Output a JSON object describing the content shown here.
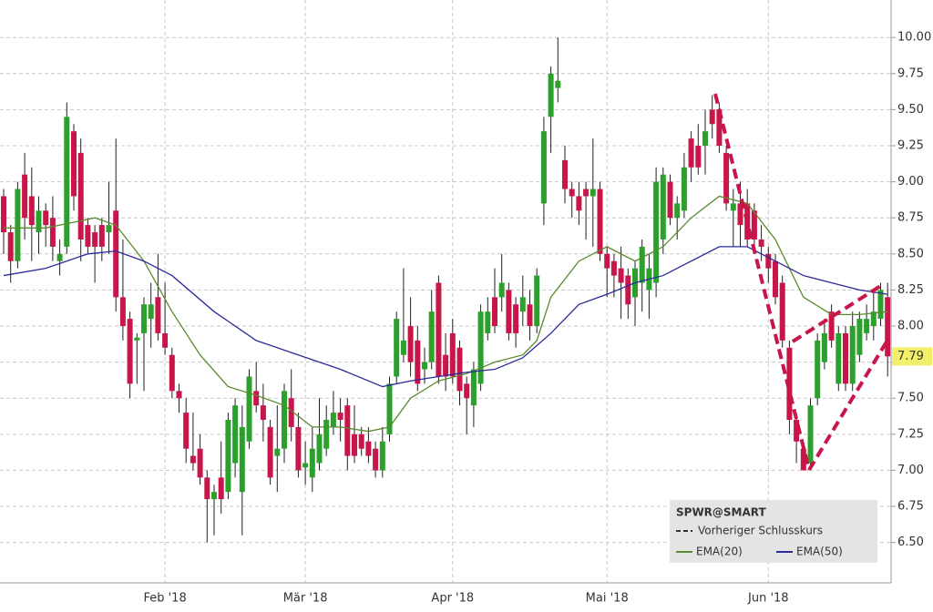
{
  "chart_data": {
    "type": "candlestick",
    "legend_title": "SPWR@SMART",
    "previous_close_label": "Vorheriger Schlusskurs",
    "last_price": 7.79,
    "up_color": "#2ca02c",
    "down_color": "#c8154a",
    "grid": true,
    "ylim": [
      6.22,
      10.26
    ],
    "yticks": [
      {
        "value": 6.5,
        "label": "6.50"
      },
      6.75,
      {
        "value": 7,
        "label": "7.00"
      },
      7.25,
      {
        "value": 7.5,
        "label": "7.50"
      },
      7.75,
      {
        "value": 8,
        "label": "8.00"
      },
      8.25,
      {
        "value": 8.5,
        "label": "8.50"
      },
      8.75,
      {
        "value": 9,
        "label": "9.00"
      },
      9.25,
      {
        "value": 9.5,
        "label": "9.50"
      },
      9.75,
      {
        "value": 10,
        "label": "10.00"
      }
    ],
    "categories": [
      null,
      null,
      null,
      null,
      null,
      null,
      null,
      null,
      null,
      null,
      null,
      null,
      null,
      null,
      null,
      null,
      null,
      null,
      null,
      null,
      null,
      null,
      null,
      "Feb '18",
      null,
      null,
      null,
      null,
      null,
      null,
      null,
      null,
      null,
      null,
      null,
      null,
      null,
      null,
      null,
      null,
      null,
      null,
      null,
      "Mär '18",
      null,
      null,
      null,
      null,
      null,
      null,
      null,
      null,
      null,
      null,
      null,
      null,
      null,
      null,
      null,
      null,
      null,
      null,
      null,
      null,
      "Apr '18",
      null,
      null,
      null,
      null,
      null,
      null,
      null,
      null,
      null,
      null,
      null,
      null,
      null,
      null,
      null,
      null,
      null,
      null,
      null,
      null,
      null,
      "Mai '18",
      null,
      null,
      null,
      null,
      null,
      null,
      null,
      null,
      null,
      null,
      null,
      null,
      null,
      null,
      null,
      null,
      null,
      null,
      null,
      null,
      null,
      null,
      "Jun '18",
      null,
      null,
      null,
      null,
      null,
      null,
      null,
      null,
      null,
      null,
      null,
      null,
      null,
      null,
      null,
      null,
      null
    ],
    "open": [
      8.9,
      8.65,
      8.45,
      9.05,
      8.9,
      8.65,
      8.8,
      8.75,
      8.45,
      8.55,
      9.35,
      9.2,
      8.7,
      8.65,
      8.7,
      8.65,
      8.8,
      8.2,
      8.05,
      7.9,
      7.95,
      8.05,
      8.2,
      7.95,
      7.8,
      7.55,
      7.4,
      7.1,
      7.15,
      6.95,
      6.8,
      6.95,
      6.85,
      7.05,
      6.85,
      7.2,
      7.55,
      7.45,
      7.3,
      7.1,
      7.15,
      7.5,
      7.3,
      7.02,
      6.95,
      7.05,
      7.15,
      7.3,
      7.4,
      7.45,
      7.25,
      7.25,
      7.2,
      7.15,
      7.0,
      7.25,
      7.65,
      7.8,
      8.0,
      7.9,
      7.7,
      7.75,
      8.3,
      7.8,
      7.95,
      7.85,
      7.6,
      7.45,
      7.6,
      7.95,
      8.2,
      8.2,
      8.25,
      8.15,
      8.1,
      8.15,
      8.0,
      8.85,
      9.45,
      9.65,
      9.15,
      8.95,
      8.9,
      8.95,
      8.9,
      8.95,
      8.5,
      8.45,
      8.4,
      8.35,
      8.2,
      8.3,
      8.25,
      8.3,
      8.6,
      9.0,
      8.75,
      8.8,
      9.3,
      9.25,
      9.25,
      9.5,
      9.5,
      9.2,
      8.8,
      8.85,
      8.85,
      8.8,
      8.6,
      8.5,
      8.45,
      8.3,
      7.85,
      7.35,
      7.15,
      7.05,
      7.5,
      7.75,
      8.1,
      7.6,
      7.95,
      7.6,
      7.8,
      7.95,
      8.0,
      8.05,
      8.2
    ],
    "high": [
      8.95,
      8.7,
      9.0,
      9.2,
      9.1,
      8.9,
      8.85,
      8.9,
      8.6,
      9.55,
      9.4,
      9.3,
      8.75,
      8.7,
      8.75,
      9.0,
      9.3,
      8.6,
      8.1,
      7.95,
      8.2,
      8.3,
      8.5,
      8.3,
      7.85,
      7.6,
      7.5,
      7.4,
      7.25,
      7.0,
      6.9,
      7.2,
      7.4,
      7.5,
      7.45,
      7.7,
      7.75,
      7.6,
      7.35,
      7.45,
      7.6,
      7.7,
      7.4,
      7.2,
      7.3,
      7.5,
      7.45,
      7.55,
      7.5,
      7.5,
      7.45,
      7.3,
      7.3,
      7.2,
      7.3,
      7.65,
      8.1,
      8.4,
      8.2,
      8.0,
      7.85,
      8.25,
      8.35,
      7.95,
      8.05,
      7.9,
      7.65,
      7.75,
      8.15,
      8.2,
      8.4,
      8.5,
      8.3,
      8.2,
      8.35,
      8.25,
      8.4,
      9.45,
      9.8,
      10.0,
      9.25,
      9.0,
      9.0,
      9.0,
      9.3,
      9.0,
      8.55,
      8.5,
      8.55,
      8.4,
      8.45,
      8.6,
      8.5,
      9.1,
      9.1,
      9.05,
      8.9,
      9.2,
      9.35,
      9.4,
      9.5,
      9.6,
      9.55,
      9.25,
      8.95,
      9.0,
      8.95,
      8.85,
      8.7,
      8.55,
      8.5,
      8.35,
      7.9,
      7.4,
      7.2,
      7.5,
      7.95,
      8.05,
      8.15,
      8.0,
      8.0,
      8.1,
      8.1,
      8.15,
      8.25,
      8.3,
      8.3
    ],
    "low": [
      8.5,
      8.3,
      8.4,
      8.6,
      8.45,
      8.5,
      8.55,
      8.45,
      8.35,
      8.5,
      8.8,
      8.45,
      8.5,
      8.3,
      8.45,
      8.5,
      8.1,
      7.9,
      7.5,
      7.6,
      7.55,
      7.85,
      7.9,
      7.8,
      7.5,
      7.4,
      7.05,
      7.0,
      6.9,
      6.5,
      6.55,
      6.7,
      6.8,
      6.95,
      6.55,
      7.15,
      7.4,
      7.2,
      6.9,
      6.85,
      7.05,
      7.2,
      6.95,
      6.9,
      6.85,
      7.0,
      7.1,
      7.25,
      7.2,
      7.0,
      7.05,
      7.1,
      7.05,
      6.95,
      6.95,
      7.2,
      7.6,
      7.75,
      7.65,
      7.55,
      7.6,
      7.7,
      7.6,
      7.55,
      7.6,
      7.45,
      7.25,
      7.3,
      7.55,
      7.9,
      7.95,
      8.1,
      7.9,
      7.85,
      8.0,
      7.9,
      7.95,
      8.7,
      9.2,
      9.55,
      8.85,
      8.75,
      8.7,
      8.6,
      8.55,
      8.45,
      8.2,
      8.2,
      8.05,
      8.05,
      8.0,
      8.1,
      8.05,
      8.2,
      8.5,
      8.7,
      8.6,
      8.75,
      9.0,
      9.05,
      9.05,
      9.3,
      9.2,
      8.8,
      8.55,
      8.55,
      8.55,
      8.55,
      8.45,
      8.3,
      8.15,
      7.85,
      7.25,
      7.05,
      7.0,
      7.0,
      7.45,
      7.7,
      7.85,
      7.55,
      7.55,
      7.55,
      7.75,
      7.9,
      7.9,
      8.0,
      7.65
    ],
    "close": [
      8.65,
      8.45,
      8.95,
      8.75,
      8.7,
      8.8,
      8.7,
      8.55,
      8.5,
      9.45,
      8.9,
      8.6,
      8.55,
      8.55,
      8.55,
      8.7,
      8.2,
      8.0,
      7.6,
      7.92,
      8.15,
      8.15,
      7.95,
      7.85,
      7.55,
      7.5,
      7.15,
      7.05,
      6.95,
      6.8,
      6.85,
      6.8,
      7.35,
      7.45,
      7.3,
      7.65,
      7.45,
      7.35,
      6.95,
      7.15,
      7.55,
      7.3,
      7.0,
      7.05,
      7.15,
      7.25,
      7.35,
      7.4,
      7.35,
      7.1,
      7.1,
      7.15,
      7.1,
      7.0,
      7.2,
      7.6,
      8.05,
      7.9,
      7.75,
      7.6,
      7.75,
      8.1,
      7.65,
      7.65,
      7.65,
      7.55,
      7.5,
      7.7,
      8.1,
      8.1,
      8.0,
      8.3,
      7.95,
      7.95,
      8.2,
      8.0,
      8.35,
      9.35,
      9.75,
      9.7,
      8.95,
      8.9,
      8.8,
      8.9,
      8.95,
      8.5,
      8.4,
      8.35,
      8.3,
      8.15,
      8.4,
      8.55,
      8.4,
      9.0,
      9.05,
      8.75,
      8.85,
      9.1,
      9.1,
      9.1,
      9.35,
      9.4,
      9.25,
      8.85,
      8.85,
      8.7,
      8.6,
      8.6,
      8.55,
      8.4,
      8.2,
      7.9,
      7.35,
      7.2,
      7.0,
      7.45,
      7.9,
      7.95,
      7.9,
      7.95,
      7.6,
      8.0,
      8.05,
      8.05,
      8.1,
      8.25,
      7.79
    ],
    "series": [
      {
        "name": "EMA(20)",
        "color": "#5a8a2e",
        "x": [
          0,
          6,
          10,
          13,
          16,
          20,
          24,
          28,
          32,
          36,
          40,
          44,
          48,
          52,
          55,
          58,
          62,
          66,
          70,
          74,
          76,
          78,
          82,
          86,
          90,
          94,
          98,
          102,
          106,
          110,
          114,
          118,
          122,
          126
        ],
        "values": [
          8.68,
          8.68,
          8.72,
          8.75,
          8.7,
          8.45,
          8.1,
          7.8,
          7.58,
          7.52,
          7.45,
          7.3,
          7.3,
          7.27,
          7.3,
          7.5,
          7.62,
          7.67,
          7.75,
          7.8,
          7.9,
          8.2,
          8.45,
          8.55,
          8.45,
          8.55,
          8.75,
          8.9,
          8.85,
          8.6,
          8.2,
          8.08,
          8.08,
          8.1
        ]
      },
      {
        "name": "EMA(50)",
        "color": "#2a2a9a",
        "x": [
          0,
          6,
          12,
          16,
          20,
          24,
          30,
          36,
          42,
          48,
          54,
          58,
          62,
          66,
          70,
          74,
          78,
          82,
          86,
          90,
          94,
          98,
          102,
          106,
          110,
          114,
          118,
          122,
          126
        ],
        "values": [
          8.35,
          8.4,
          8.5,
          8.52,
          8.45,
          8.35,
          8.1,
          7.9,
          7.8,
          7.7,
          7.58,
          7.62,
          7.65,
          7.68,
          7.7,
          7.78,
          7.95,
          8.15,
          8.22,
          8.3,
          8.35,
          8.45,
          8.55,
          8.55,
          8.45,
          8.35,
          8.3,
          8.25,
          8.22
        ]
      }
    ]
  }
}
